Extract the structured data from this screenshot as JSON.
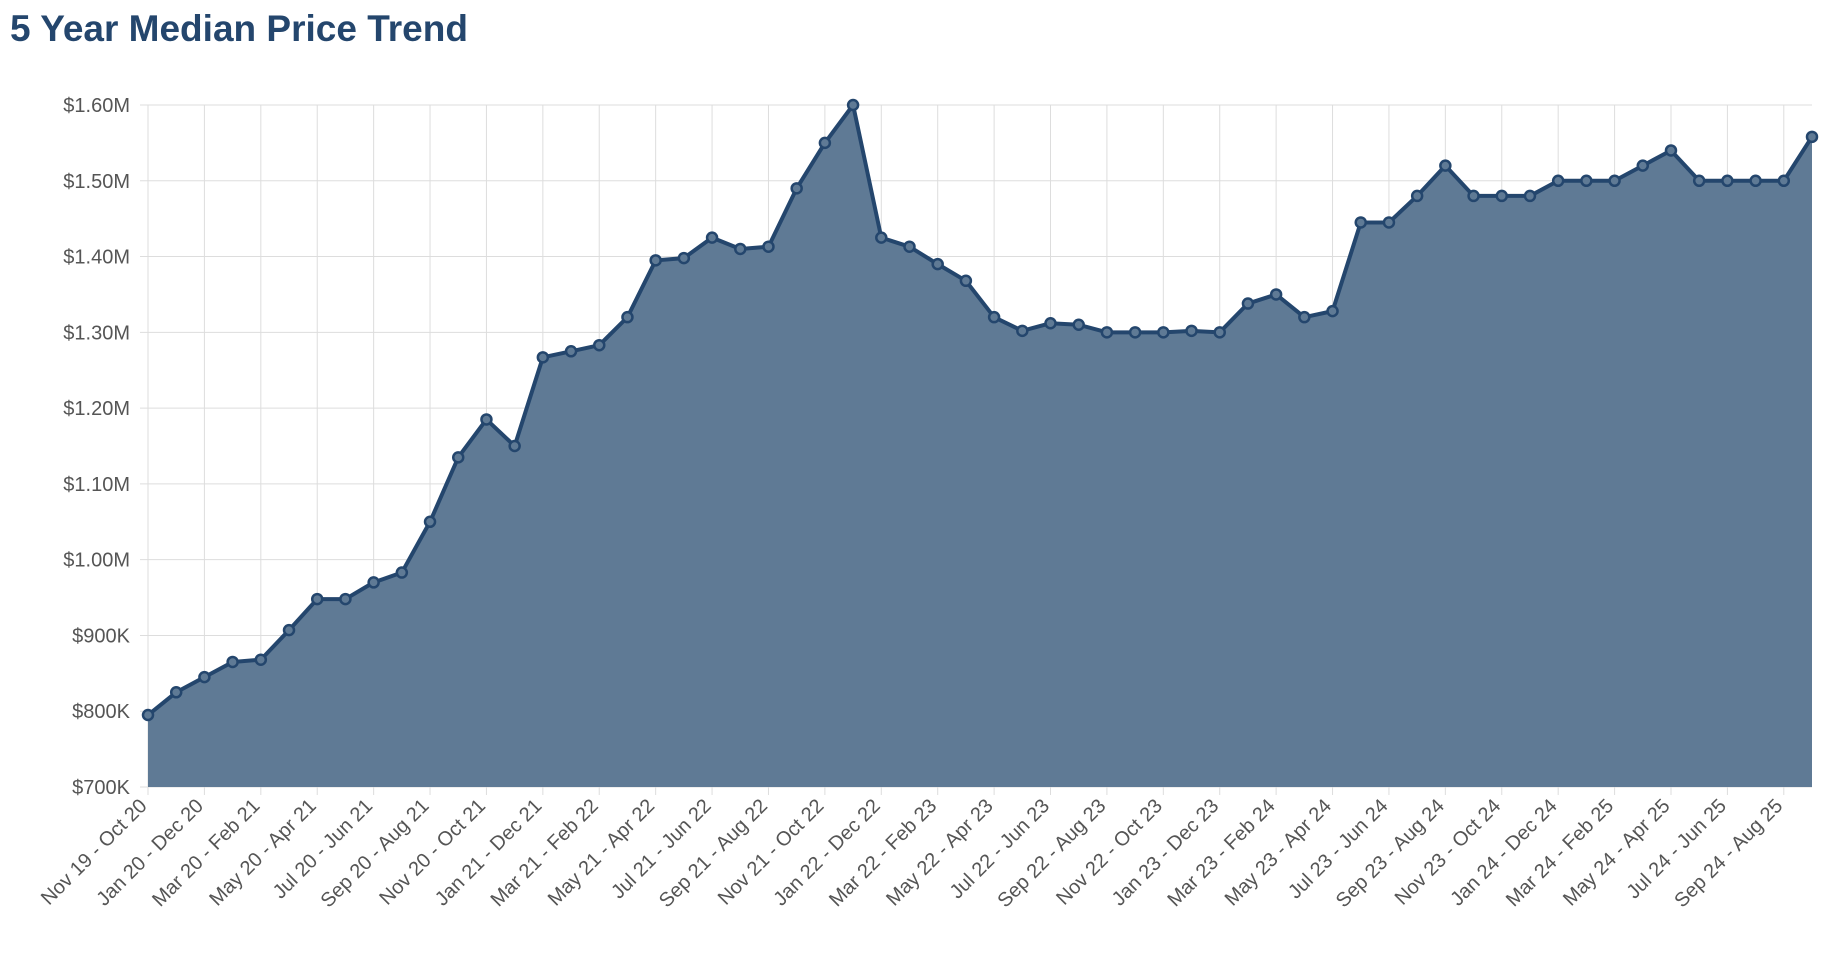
{
  "title": "5 Year Median Price Trend",
  "colors": {
    "line": "#24466d",
    "fill": "#5f7a95",
    "grid": "#dddddd",
    "axis_text": "#555555"
  },
  "chart_data": {
    "type": "area",
    "title": "5 Year Median Price Trend",
    "xlabel": "",
    "ylabel": "",
    "ylim": [
      700000,
      1600000
    ],
    "yticks": [
      700000,
      800000,
      900000,
      1000000,
      1100000,
      1200000,
      1300000,
      1400000,
      1500000,
      1600000
    ],
    "ytick_labels": [
      "$700K",
      "$800K",
      "$900K",
      "$1.00M",
      "$1.10M",
      "$1.20M",
      "$1.30M",
      "$1.40M",
      "$1.50M",
      "$1.60M"
    ],
    "grid": true,
    "xtick_labels": [
      "Nov 19 - Oct 20",
      "Jan 20 - Dec 20",
      "Mar 20 - Feb 21",
      "May 20 - Apr 21",
      "Jul 20 - Jun 21",
      "Sep 20 - Aug 21",
      "Nov 20 - Oct 21",
      "Jan 21 - Dec 21",
      "Mar 21 - Feb 22",
      "May 21 - Apr 22",
      "Jul 21 - Jun 22",
      "Sep 21 - Aug 22",
      "Nov 21 - Oct 22",
      "Jan 22 - Dec 22",
      "Mar 22 - Feb 23",
      "May 22 - Apr 23",
      "Jul 22 - Jun 23",
      "Sep 22 - Aug 23",
      "Nov 22 - Oct 23",
      "Jan 23 - Dec 23",
      "Mar 23 - Feb 24",
      "May 23 - Apr 24",
      "Jul 23 - Jun 24",
      "Sep 23 - Aug 24",
      "Nov 23 - Oct 24",
      "Jan 24 - Dec 24",
      "Mar 24 - Feb 25",
      "May 24 - Apr 25",
      "Jul 24 - Jun 25",
      "Sep 24 - Aug 25"
    ],
    "values": [
      795000,
      825000,
      845000,
      865000,
      868000,
      907000,
      948000,
      948000,
      970000,
      983000,
      1050000,
      1135000,
      1185000,
      1150000,
      1267000,
      1275000,
      1283000,
      1320000,
      1395000,
      1398000,
      1425000,
      1410000,
      1413000,
      1490000,
      1550000,
      1600000,
      1425000,
      1413000,
      1390000,
      1368000,
      1320000,
      1302000,
      1312000,
      1310000,
      1300000,
      1300000,
      1300000,
      1302000,
      1300000,
      1338000,
      1350000,
      1320000,
      1328000,
      1445000,
      1445000,
      1480000,
      1520000,
      1480000,
      1480000,
      1480000,
      1500000,
      1500000,
      1500000,
      1520000,
      1540000,
      1500000,
      1500000,
      1500000,
      1500000,
      1558000
    ]
  }
}
